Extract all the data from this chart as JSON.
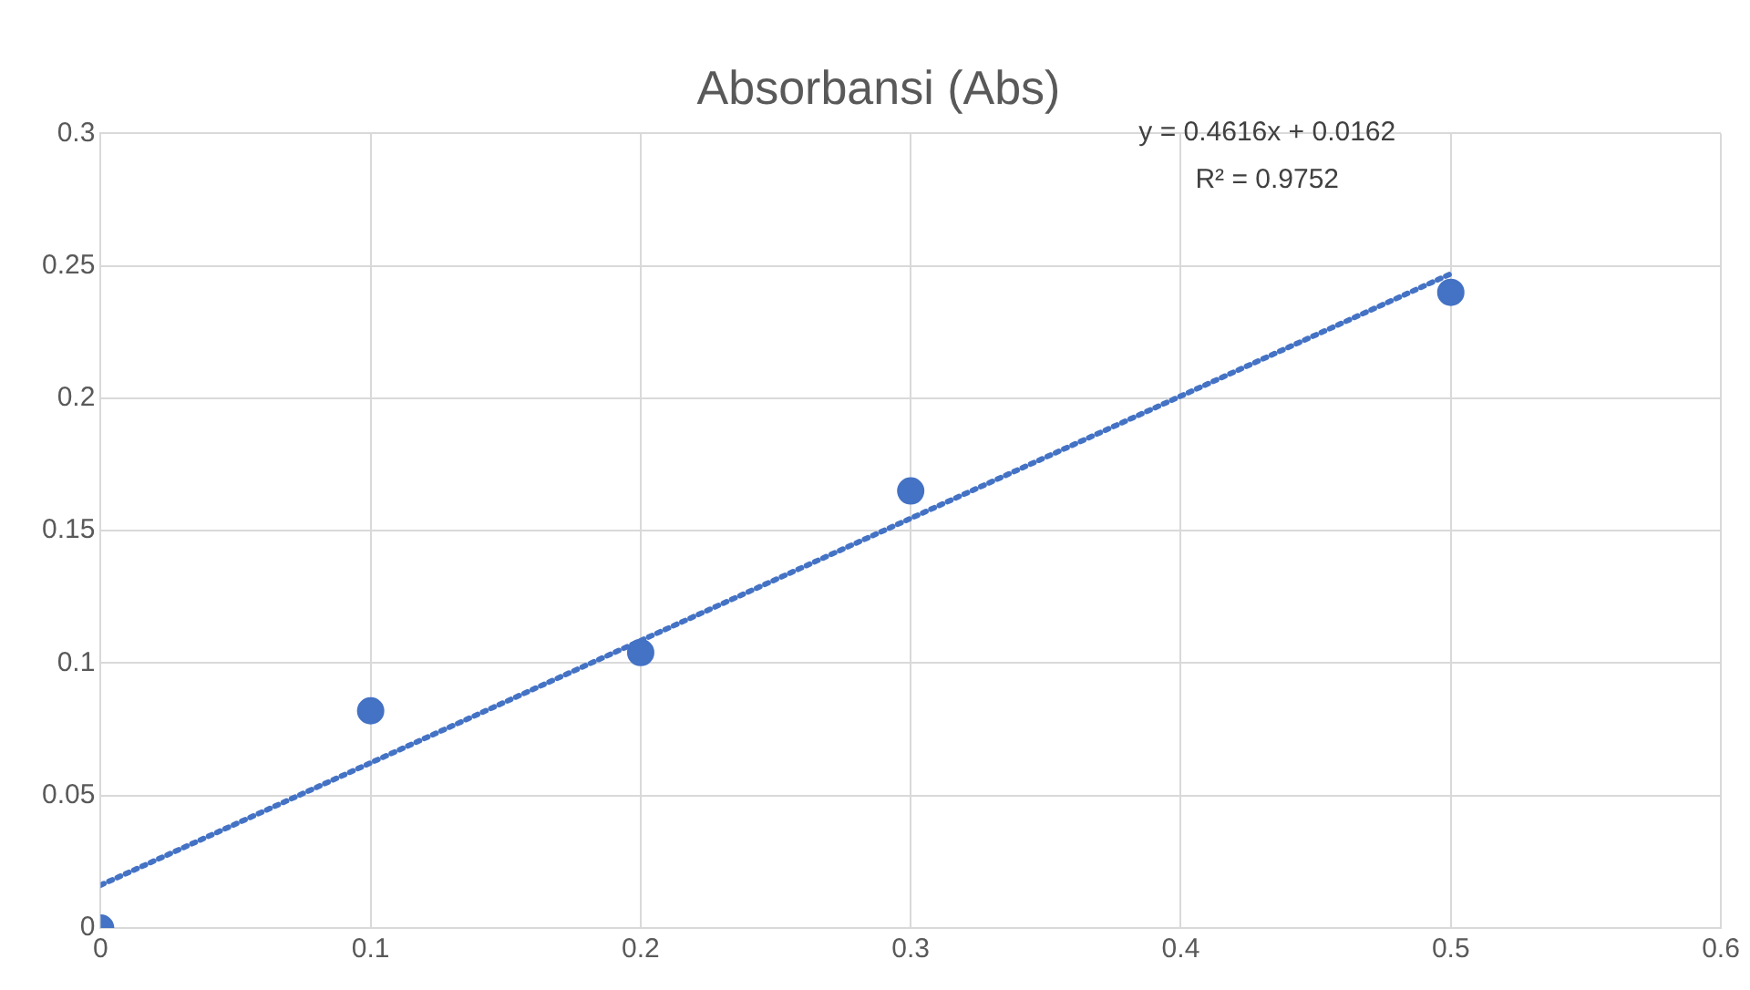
{
  "chart_data": {
    "type": "scatter",
    "title": "Absorbansi (Abs)",
    "series": [
      {
        "color": "#4472c4",
        "x": [
          0,
          0.1,
          0.2,
          0.3,
          0.5
        ],
        "values": [
          0,
          0.082,
          0.104,
          0.165,
          0.24
        ],
        "marker": "circle"
      },
      {
        "type": "line",
        "color": "#4472c4",
        "x": [
          0,
          0.5
        ],
        "values": [
          0.0162,
          0.247
        ],
        "line_style": "dotted",
        "marker": "none"
      }
    ],
    "annotations": [
      "y = 0.4616x + 0.0162",
      "R² = 0.9752"
    ],
    "xlim": [
      0,
      0.6
    ],
    "xticks": [
      0,
      0.1,
      0.2,
      0.3,
      0.4,
      0.5,
      0.6
    ],
    "ylim": [
      0,
      0.3
    ],
    "yticks": [
      0,
      0.05,
      0.1,
      0.15,
      0.2,
      0.25,
      0.3
    ],
    "grid": true,
    "legend": false
  }
}
